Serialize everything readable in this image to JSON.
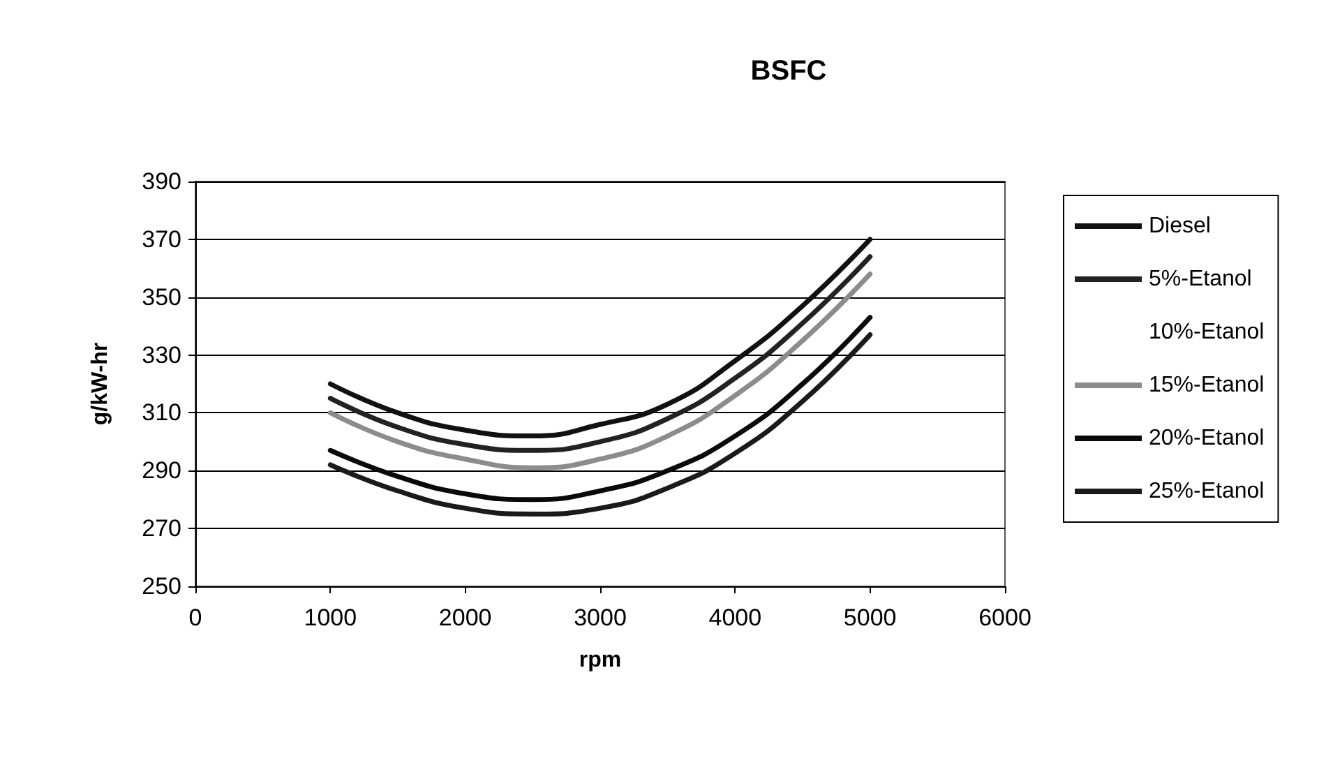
{
  "chart_data": {
    "type": "line",
    "title": "BSFC",
    "xlabel": "rpm",
    "ylabel": "g/kW-hr",
    "x": [
      1000,
      1500,
      2000,
      2500,
      3000,
      3500,
      4000,
      4500,
      5000
    ],
    "series": [
      {
        "name": "Diesel",
        "color": "#111111",
        "values": [
          320,
          310,
          304,
          302,
          306,
          313,
          328,
          347,
          370
        ]
      },
      {
        "name": "5%-Etanol",
        "color": "#222222",
        "values": [
          315,
          305,
          299,
          297,
          300,
          308,
          322,
          341,
          364
        ]
      },
      {
        "name": "10%-Etanol",
        "values": [
          null,
          null,
          null,
          null,
          null,
          null,
          null,
          null,
          null
        ]
      },
      {
        "name": "15%-Etanol",
        "color": "#8c8c8c",
        "values": [
          310,
          300,
          294,
          291,
          294,
          302,
          316,
          335,
          358
        ]
      },
      {
        "name": "20%-Etanol",
        "color": "#0a0a0a",
        "values": [
          297,
          288,
          282,
          280,
          283,
          290,
          302,
          320,
          343
        ]
      },
      {
        "name": "25%-Etanol",
        "color": "#1a1a1a",
        "values": [
          292,
          283,
          277,
          275,
          277,
          284,
          296,
          314,
          337
        ]
      }
    ],
    "xlim": [
      0,
      6000
    ],
    "xticks": [
      0,
      1000,
      2000,
      3000,
      4000,
      5000,
      6000
    ],
    "ylim": [
      250,
      390
    ],
    "yticks": [
      250,
      270,
      290,
      310,
      330,
      350,
      370,
      390
    ],
    "grid": "y",
    "legend": "right",
    "marker": "none",
    "line_style": "solid"
  }
}
